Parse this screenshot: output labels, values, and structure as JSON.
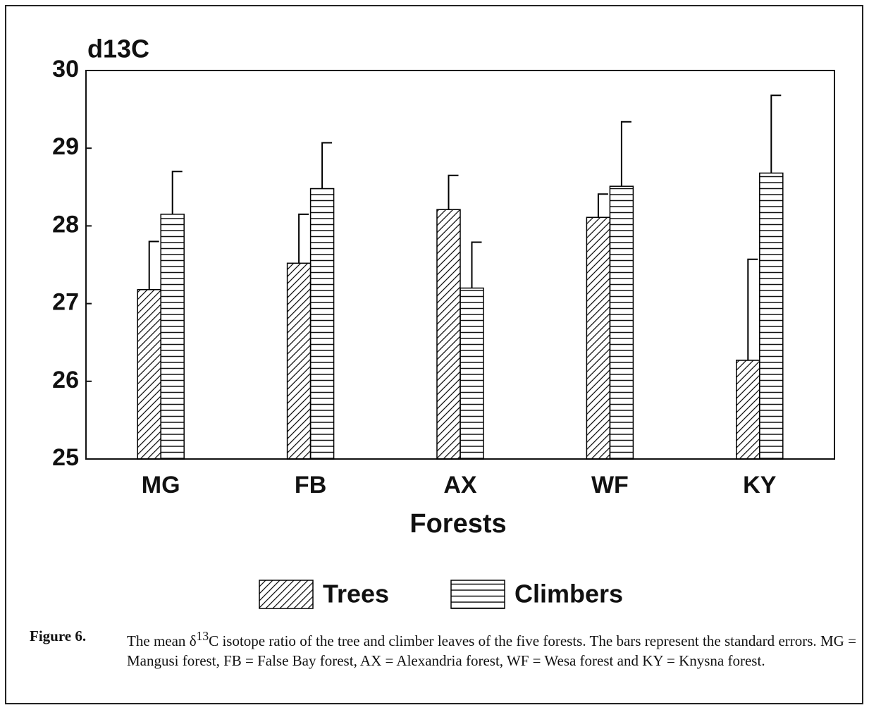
{
  "chart_data": {
    "type": "bar",
    "y_label": "d13C",
    "x_label": "Forests",
    "categories": [
      "MG",
      "FB",
      "AX",
      "WF",
      "KY"
    ],
    "series": [
      {
        "name": "Trees",
        "color": "#000000",
        "hatch": "diagonal",
        "values": [
          27.18,
          27.52,
          28.21,
          28.11,
          26.27
        ],
        "errors": [
          0.62,
          0.63,
          0.44,
          0.3,
          1.3
        ]
      },
      {
        "name": "Climbers",
        "color": "#000000",
        "hatch": "horizontal",
        "values": [
          28.15,
          28.48,
          27.2,
          28.51,
          28.68
        ],
        "errors": [
          0.55,
          0.59,
          0.59,
          0.83,
          1.0
        ]
      }
    ],
    "ylim": [
      25,
      30
    ],
    "yticks": [
      25,
      26,
      27,
      28,
      29,
      30
    ],
    "grid": false,
    "caption": {
      "label": "Figure 6.",
      "before": "The mean δ",
      "sup": "13",
      "after": "C isotope ratio of the tree and climber leaves of the five forests. The bars represent the standard errors. MG = Mangusi forest, FB = False Bay forest, AX = Alexandria forest, WF = Wesa forest and KY = Knysna forest."
    }
  }
}
